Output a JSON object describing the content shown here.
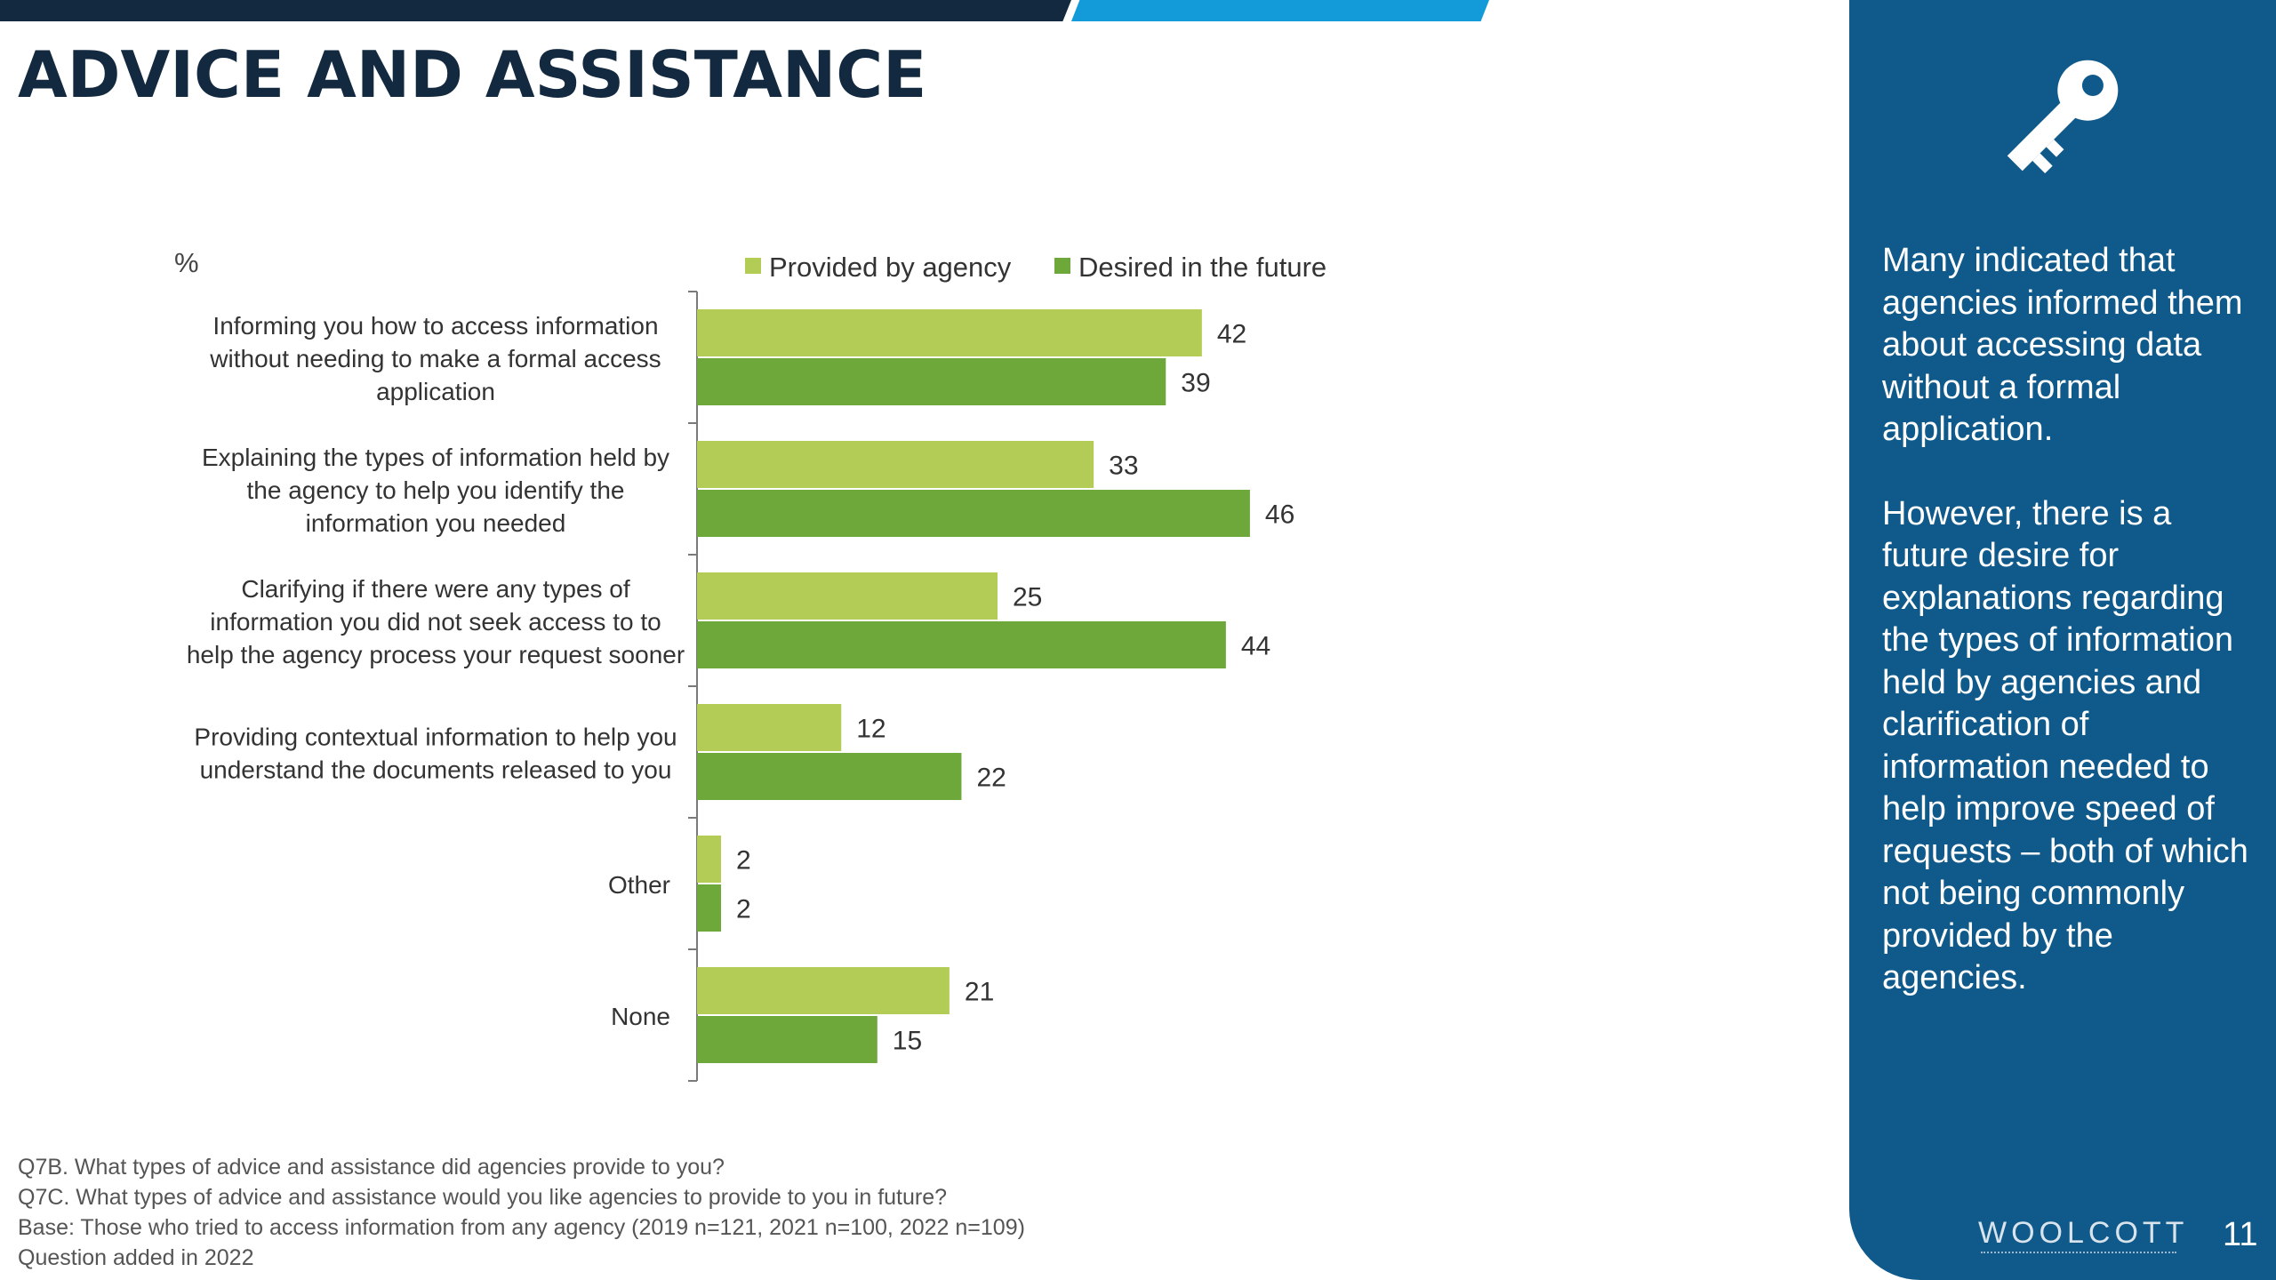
{
  "page": {
    "title": "ADVICE AND ASSISTANCE",
    "number": "11",
    "brand": "WOOLCOTT"
  },
  "colors": {
    "navy": "#13293f",
    "accent_blue": "#129bd8",
    "panel_blue": "#0f5a8a",
    "provided": "#b3cc55",
    "desired": "#6ea83b"
  },
  "icons": {
    "panel_icon": "key-icon"
  },
  "chart_data": {
    "type": "bar",
    "orientation": "horizontal",
    "unit_label": "%",
    "categories": [
      [
        "Informing you how to access information",
        "without needing to make a formal access",
        "application"
      ],
      [
        "Explaining the types of information held by",
        "the agency to help you identify the",
        "information you needed"
      ],
      [
        "Clarifying if there were any types of",
        "information you did not seek access to  to",
        "help the agency process your request sooner"
      ],
      [
        "Providing contextual information to help you",
        "understand the documents released to you"
      ],
      [
        "Other"
      ],
      [
        "None"
      ]
    ],
    "series": [
      {
        "name": "Provided by agency",
        "color": "#b3cc55",
        "values": [
          42,
          33,
          25,
          12,
          2,
          21
        ]
      },
      {
        "name": "Desired in the future",
        "color": "#6ea83b",
        "values": [
          39,
          46,
          44,
          22,
          2,
          15
        ]
      }
    ],
    "data_labels": true,
    "legend": "top",
    "grid": false,
    "xlim": [
      0,
      50
    ]
  },
  "footnotes": [
    "Q7B. What types of advice and assistance did agencies provide to you?",
    "Q7C. What types of advice and assistance would you like agencies to provide to you in future?",
    "Base: Those who tried to access information from any agency (2019 n=121, 2021 n=100, 2022 n=109)",
    "Question added in 2022"
  ],
  "panel": {
    "paragraph1": "Many indicated that agencies informed them about accessing data without a formal application.",
    "paragraph2": "However, there is a future desire for explanations regarding the types of information held by agencies and clarification of information needed to help improve speed of requests – both of which not being commonly provided by the agencies."
  }
}
